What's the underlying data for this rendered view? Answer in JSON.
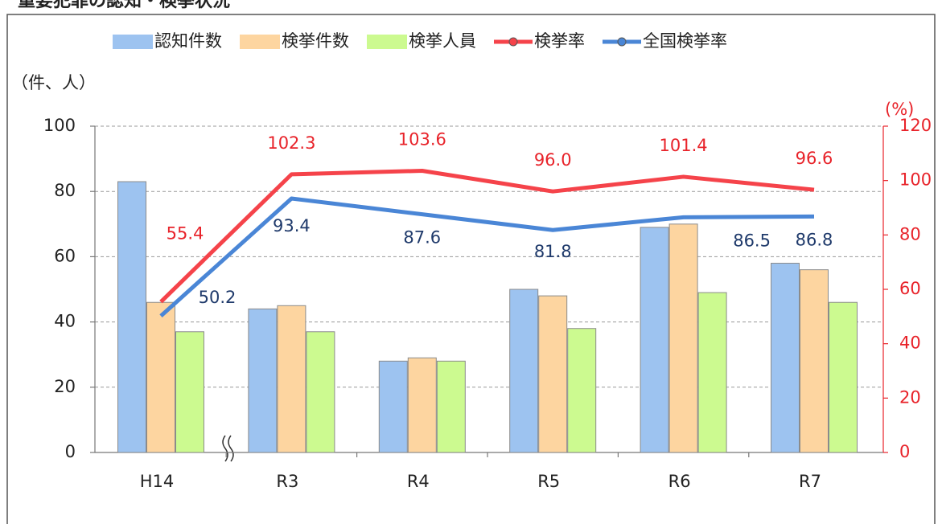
{
  "chart_data": {
    "type": "bar",
    "title": "重要犯罪の認知・検挙状況",
    "y_label": "（件、人）",
    "y2_label": "(%)",
    "categories": [
      "H14",
      "R3",
      "R4",
      "R5",
      "R6",
      "R7"
    ],
    "series": [
      {
        "name": "認知件数",
        "color": "#9dc3f0",
        "values": [
          83,
          44,
          28,
          50,
          69,
          58
        ]
      },
      {
        "name": "検挙件数",
        "color": "#fdd5a0",
        "values": [
          46,
          45,
          29,
          48,
          70,
          56
        ]
      },
      {
        "name": "検挙人員",
        "color": "#ccfa90",
        "values": [
          37,
          37,
          28,
          38,
          49,
          46
        ]
      },
      {
        "name": "検挙率",
        "type": "line",
        "axis": "y2",
        "color": "#f5434a",
        "values": [
          55.4,
          102.3,
          103.6,
          96.0,
          101.4,
          96.6
        ],
        "value_labels": [
          "55.4",
          "102.3",
          "103.6",
          "96.0",
          "101.4",
          "96.6"
        ]
      },
      {
        "name": "全国検挙率",
        "type": "line",
        "axis": "y2",
        "color": "#4a86d6",
        "values": [
          50.2,
          93.4,
          87.6,
          81.8,
          86.5,
          86.8
        ],
        "value_labels": [
          "50.2",
          "93.4",
          "87.6",
          "81.8",
          "86.5",
          "86.8"
        ]
      }
    ],
    "ylim": [
      0,
      100
    ],
    "yticks": [
      0,
      20,
      40,
      60,
      80,
      100
    ],
    "y2lim": [
      0,
      120
    ],
    "y2ticks": [
      0,
      20,
      40,
      60,
      80,
      100,
      120
    ],
    "grid": true,
    "legend": "top"
  }
}
